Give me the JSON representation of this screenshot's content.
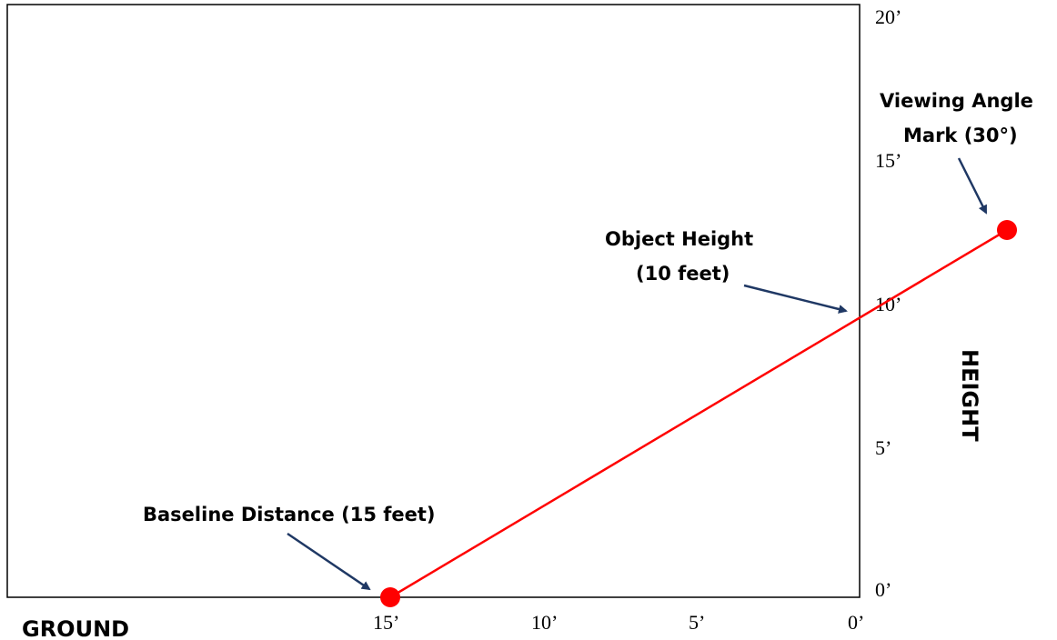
{
  "diagram": {
    "axes": {
      "height_ticks": [
        "20’",
        "15’",
        "10’",
        "5’",
        "0’"
      ],
      "ground_ticks": [
        "15’",
        "10’",
        "5’",
        "0’"
      ],
      "ground_label": "GROUND",
      "height_label": "HEIGHT"
    },
    "annotations": {
      "baseline": "Baseline Distance (15 feet)",
      "object_line1": "Object Height",
      "object_line2": "(10 feet)",
      "angle_line1": "Viewing Angle",
      "angle_line2": "Mark (30°)"
    },
    "colors": {
      "line": "#ff0000",
      "point": "#ff0000",
      "arrow": "#1f3864",
      "frame": "#000000"
    },
    "measurements": {
      "baseline_distance_ft": 15,
      "object_height_ft": 10,
      "viewing_angle_deg": 30
    }
  }
}
